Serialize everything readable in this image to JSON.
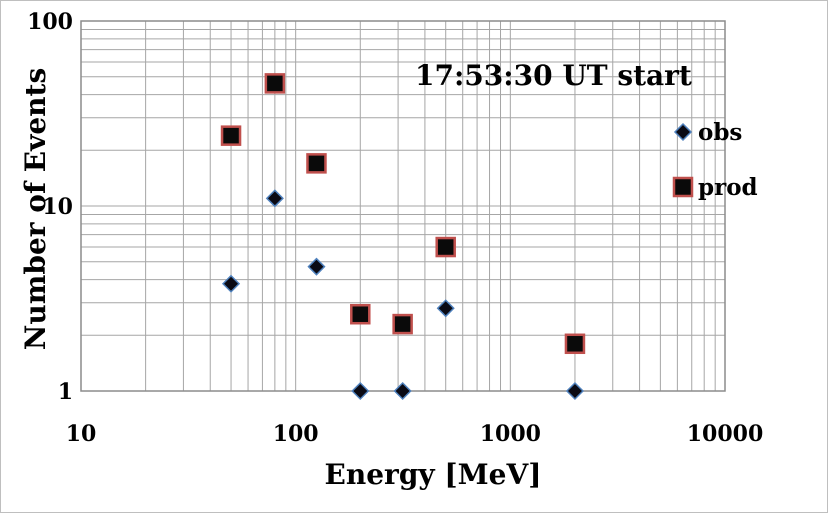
{
  "chart_data": {
    "type": "scatter",
    "title": "",
    "annotation": "17:53:30 UT start",
    "xlabel": "Energy [MeV]",
    "ylabel": "Number of Events",
    "xscale": "log",
    "yscale": "log",
    "xlim": [
      10,
      10000
    ],
    "ylim": [
      1,
      100
    ],
    "grid": true,
    "legend_placement": "right",
    "x_tick_labels": [
      "10",
      "100",
      "1000",
      "10000"
    ],
    "y_tick_labels": [
      "1",
      "10",
      "100"
    ],
    "series": [
      {
        "name": "obs",
        "marker": "diamond",
        "color": "#0a0a14",
        "edge_color": "#4f81bd",
        "points": [
          {
            "x": 50,
            "y": 3.8
          },
          {
            "x": 80,
            "y": 11
          },
          {
            "x": 125,
            "y": 4.7
          },
          {
            "x": 200,
            "y": 1
          },
          {
            "x": 315,
            "y": 1
          },
          {
            "x": 500,
            "y": 2.8
          },
          {
            "x": 2000,
            "y": 1
          }
        ]
      },
      {
        "name": "prod",
        "marker": "square",
        "color": "#0a0a0a",
        "edge_color": "#c0504d",
        "points": [
          {
            "x": 50,
            "y": 24
          },
          {
            "x": 80,
            "y": 46
          },
          {
            "x": 125,
            "y": 17
          },
          {
            "x": 200,
            "y": 2.6
          },
          {
            "x": 315,
            "y": 2.3
          },
          {
            "x": 500,
            "y": 6
          },
          {
            "x": 2000,
            "y": 1.8
          }
        ]
      }
    ]
  }
}
